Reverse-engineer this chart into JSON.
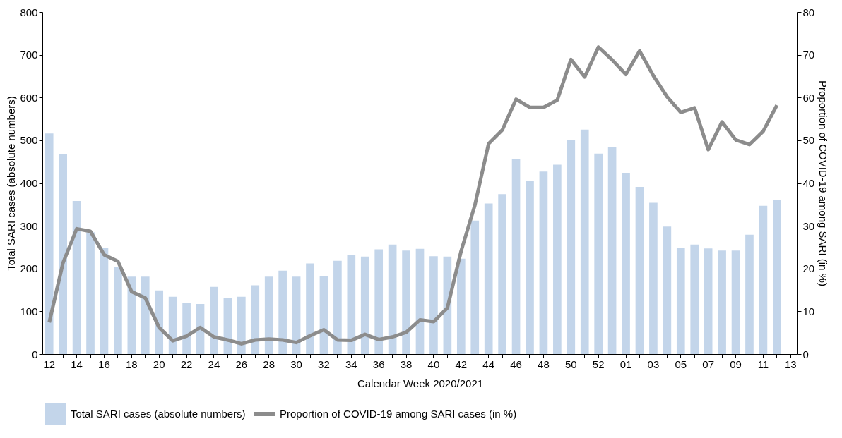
{
  "chart_data": {
    "type": "bar",
    "categories": [
      "12",
      null,
      "14",
      null,
      "16",
      null,
      "18",
      null,
      "20",
      null,
      "22",
      null,
      "24",
      null,
      "26",
      null,
      "28",
      null,
      "30",
      null,
      "32",
      null,
      "34",
      null,
      "36",
      null,
      "38",
      null,
      "40",
      null,
      "42",
      null,
      "44",
      null,
      "46",
      null,
      "48",
      null,
      "50",
      null,
      "52",
      null,
      "01",
      null,
      "03",
      null,
      "05",
      null,
      "07",
      null,
      "09",
      null,
      "11",
      null,
      "13"
    ],
    "xlabel": "Calendar Week 2020/2021",
    "ylabel": "Total SARI cases (absolute numbers)",
    "y2label": "Proportion of COVID-19 among SARI (in %)",
    "ylim": [
      0,
      800
    ],
    "yticks": [
      0,
      100,
      200,
      300,
      400,
      500,
      600,
      700,
      800
    ],
    "y2lim": [
      0,
      80
    ],
    "y2ticks": [
      0,
      10,
      20,
      30,
      40,
      50,
      60,
      70,
      80
    ],
    "grid": false,
    "legend": "bottom",
    "series": [
      {
        "name": "Total SARI cases (absolute numbers)",
        "color": "#c3d5ea",
        "values": [
          516,
          467,
          358,
          285,
          248,
          204,
          181,
          181,
          149,
          134,
          119,
          117,
          157,
          131,
          134,
          161,
          181,
          195,
          181,
          212,
          183,
          218,
          231,
          228,
          245,
          256,
          242,
          246,
          229,
          228,
          223,
          312,
          352,
          374,
          456,
          404,
          427,
          443,
          501,
          525,
          469,
          484,
          424,
          391,
          354,
          298,
          249,
          256,
          247,
          242,
          242,
          279,
          347,
          361,
          null
        ]
      },
      {
        "name": "Proportion of COVID-19 among SARI cases (in %)",
        "type": "line",
        "axis": "y2",
        "color": "#8c8c8c",
        "line_style": "solid",
        "marker": "none",
        "values": [
          7.4,
          21.3,
          29.3,
          28.7,
          23.2,
          21.7,
          14.6,
          13.1,
          6.2,
          3.1,
          4.2,
          6.2,
          4.0,
          3.3,
          2.4,
          3.3,
          3.5,
          3.3,
          2.7,
          4.3,
          5.7,
          3.3,
          3.2,
          4.6,
          3.4,
          4.0,
          5.1,
          8.0,
          7.6,
          10.8,
          24.1,
          34.8,
          49.2,
          52.4,
          59.6,
          57.7,
          57.7,
          59.4,
          68.9,
          64.8,
          71.8,
          68.8,
          65.4,
          70.9,
          65.1,
          60.2,
          56.5,
          57.6,
          47.8,
          54.3,
          50.1,
          49.0,
          52.1,
          58.2,
          null
        ]
      }
    ]
  }
}
